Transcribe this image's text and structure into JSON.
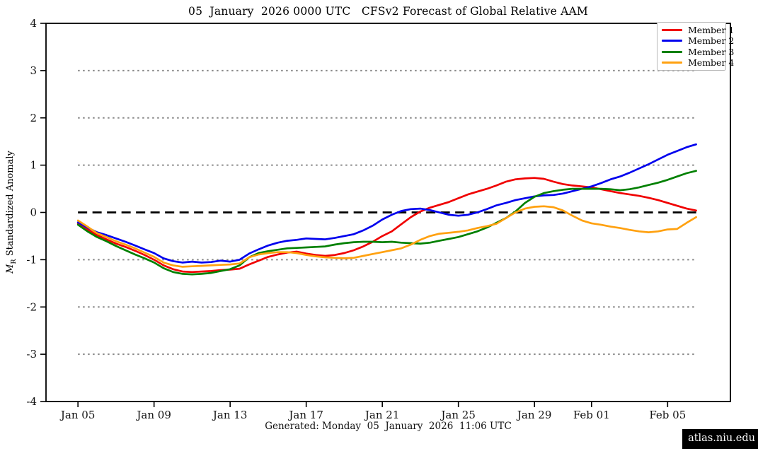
{
  "title": "05  January  2026 0000 UTC   CFSv2 Forecast of Global Relative AAM",
  "ylabel": {
    "m": "M",
    "sub": "R",
    "text": " Standardized Anomaly"
  },
  "footer": "Generated: Monday  05  January  2026  11:06 UTC",
  "badge": "atlas.niu.edu",
  "chart_data": {
    "type": "line",
    "title": "05 January 2026 0000 UTC CFSv2 Forecast of Global Relative AAM",
    "xlabel": "",
    "ylabel": "M_R Standardized Anomaly",
    "x_unit": "days since 2026-01-05 00 UTC",
    "xlim_days": [
      -1.68,
      34.3
    ],
    "ylim": [
      -4,
      4
    ],
    "data_span_days": [
      0,
      32.5
    ],
    "x_ticks": [
      0,
      4,
      8,
      12,
      16,
      20,
      24,
      27,
      31
    ],
    "x_tick_labels": [
      "Jan 05",
      "Jan 09",
      "Jan 13",
      "Jan 17",
      "Jan 21",
      "Jan 25",
      "Jan 29",
      "Feb 01",
      "Feb 05"
    ],
    "y_ticks": [
      -4,
      -3,
      -2,
      -1,
      0,
      1,
      2,
      3,
      4
    ],
    "y_gridlines": [
      -3,
      -2,
      -1,
      1,
      2,
      3
    ],
    "grid_color": "#888888",
    "grid_style": "dotted",
    "zero_line": {
      "value": 0,
      "color": "#000000",
      "style": "dashed"
    },
    "legend_position": "upper right",
    "x": [
      0,
      0.5,
      1,
      1.5,
      2,
      2.5,
      3,
      3.5,
      4,
      4.5,
      5,
      5.5,
      6,
      6.5,
      7,
      7.5,
      8,
      8.5,
      9,
      9.5,
      10,
      10.5,
      11,
      11.5,
      12,
      12.5,
      13,
      13.5,
      14,
      14.5,
      15,
      15.5,
      16,
      16.5,
      17,
      17.5,
      18,
      18.5,
      19,
      19.5,
      20,
      20.5,
      21,
      21.5,
      22,
      22.5,
      23,
      23.5,
      24,
      24.5,
      25,
      25.5,
      26,
      26.5,
      27,
      27.5,
      28,
      28.5,
      29,
      29.5,
      30,
      30.5,
      31,
      31.5,
      32,
      32.5
    ],
    "series": [
      {
        "name": "Member 1",
        "color": "#f00000",
        "values": [
          -0.24,
          -0.36,
          -0.48,
          -0.57,
          -0.66,
          -0.73,
          -0.81,
          -0.9,
          -1.0,
          -1.12,
          -1.2,
          -1.25,
          -1.26,
          -1.25,
          -1.24,
          -1.22,
          -1.21,
          -1.19,
          -1.1,
          -1.02,
          -0.94,
          -0.89,
          -0.85,
          -0.83,
          -0.87,
          -0.9,
          -0.92,
          -0.9,
          -0.86,
          -0.8,
          -0.72,
          -0.62,
          -0.5,
          -0.4,
          -0.25,
          -0.1,
          0.02,
          0.1,
          0.16,
          0.22,
          0.3,
          0.38,
          0.44,
          0.5,
          0.57,
          0.65,
          0.7,
          0.72,
          0.73,
          0.71,
          0.65,
          0.6,
          0.57,
          0.55,
          0.53,
          0.49,
          0.45,
          0.41,
          0.38,
          0.35,
          0.31,
          0.26,
          0.2,
          0.14,
          0.08,
          0.04
        ]
      },
      {
        "name": "Member 2",
        "color": "#0000ee",
        "values": [
          -0.21,
          -0.32,
          -0.42,
          -0.48,
          -0.55,
          -0.62,
          -0.7,
          -0.78,
          -0.86,
          -0.97,
          -1.03,
          -1.06,
          -1.04,
          -1.06,
          -1.05,
          -1.02,
          -1.04,
          -1.0,
          -0.87,
          -0.78,
          -0.7,
          -0.64,
          -0.6,
          -0.58,
          -0.55,
          -0.56,
          -0.57,
          -0.54,
          -0.5,
          -0.46,
          -0.38,
          -0.28,
          -0.15,
          -0.05,
          0.03,
          0.07,
          0.08,
          0.05,
          0.0,
          -0.05,
          -0.07,
          -0.05,
          0.0,
          0.07,
          0.15,
          0.2,
          0.26,
          0.3,
          0.34,
          0.36,
          0.37,
          0.4,
          0.45,
          0.5,
          0.55,
          0.62,
          0.7,
          0.76,
          0.84,
          0.93,
          1.02,
          1.12,
          1.22,
          1.3,
          1.38,
          1.44
        ]
      },
      {
        "name": "Member 3",
        "color": "#008000",
        "values": [
          -0.26,
          -0.4,
          -0.52,
          -0.61,
          -0.71,
          -0.8,
          -0.89,
          -0.97,
          -1.06,
          -1.18,
          -1.26,
          -1.3,
          -1.31,
          -1.3,
          -1.28,
          -1.24,
          -1.2,
          -1.12,
          -0.95,
          -0.86,
          -0.82,
          -0.79,
          -0.76,
          -0.75,
          -0.74,
          -0.73,
          -0.72,
          -0.68,
          -0.65,
          -0.63,
          -0.62,
          -0.62,
          -0.63,
          -0.62,
          -0.64,
          -0.65,
          -0.66,
          -0.64,
          -0.6,
          -0.56,
          -0.52,
          -0.46,
          -0.4,
          -0.32,
          -0.22,
          -0.12,
          0.02,
          0.2,
          0.33,
          0.41,
          0.45,
          0.48,
          0.5,
          0.5,
          0.5,
          0.5,
          0.49,
          0.47,
          0.49,
          0.53,
          0.58,
          0.63,
          0.69,
          0.76,
          0.83,
          0.88
        ]
      },
      {
        "name": "Member 4",
        "color": "#ffa110",
        "values": [
          -0.17,
          -0.3,
          -0.44,
          -0.52,
          -0.61,
          -0.68,
          -0.76,
          -0.85,
          -0.94,
          -1.06,
          -1.12,
          -1.15,
          -1.14,
          -1.13,
          -1.12,
          -1.11,
          -1.1,
          -1.08,
          -0.95,
          -0.89,
          -0.86,
          -0.84,
          -0.84,
          -0.86,
          -0.9,
          -0.93,
          -0.95,
          -0.96,
          -0.97,
          -0.96,
          -0.92,
          -0.88,
          -0.84,
          -0.8,
          -0.76,
          -0.68,
          -0.58,
          -0.5,
          -0.45,
          -0.43,
          -0.41,
          -0.38,
          -0.33,
          -0.29,
          -0.24,
          -0.12,
          0.0,
          0.08,
          0.12,
          0.13,
          0.11,
          0.04,
          -0.07,
          -0.17,
          -0.23,
          -0.26,
          -0.3,
          -0.33,
          -0.37,
          -0.4,
          -0.42,
          -0.4,
          -0.36,
          -0.35,
          -0.22,
          -0.1
        ]
      }
    ]
  }
}
